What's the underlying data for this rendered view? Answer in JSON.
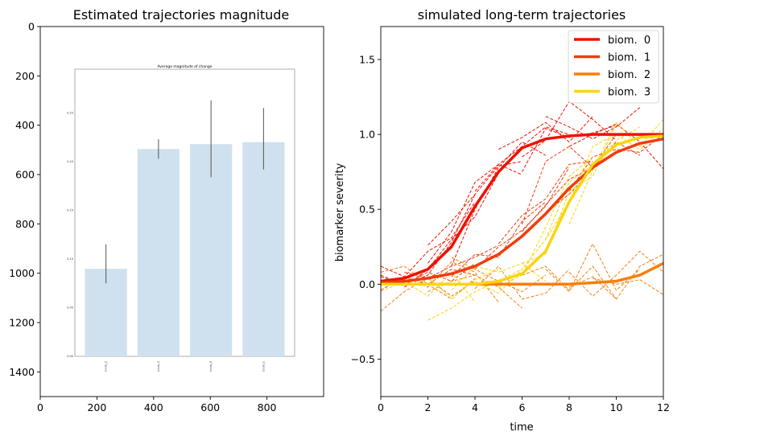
{
  "chart_data": [
    {
      "type": "image-axes",
      "title": "Estimated trajectories magnitude",
      "xlim": [
        0,
        1000
      ],
      "ylim": [
        1500,
        0
      ],
      "x_ticks": [
        0,
        200,
        400,
        600,
        800
      ],
      "y_ticks": [
        0,
        200,
        400,
        600,
        800,
        1000,
        1200,
        1400
      ],
      "inset": {
        "type": "bar",
        "title": "Average magnitude of change",
        "categories": [
          "biom_2",
          "biom_3",
          "biom_0",
          "biom_1"
        ],
        "values": [
          0.09,
          0.213,
          0.218,
          0.22
        ],
        "error": [
          [
            0.075,
            0.115
          ],
          [
            0.203,
            0.223
          ],
          [
            0.184,
            0.263
          ],
          [
            0.192,
            0.255
          ]
        ],
        "ylim": [
          0,
          0.295
        ],
        "y_ticks": [
          "0.00",
          "0.05",
          "0.10",
          "0.15",
          "0.20",
          "0.25"
        ],
        "bar_color": "#cfe1ee"
      }
    },
    {
      "type": "line",
      "title": "simulated long-term trajectories",
      "xlabel": "time",
      "ylabel": "biomarker severity",
      "xlim": [
        0,
        12
      ],
      "ylim": [
        -0.75,
        1.72
      ],
      "x_ticks": [
        0,
        2,
        4,
        6,
        8,
        10,
        12
      ],
      "y_ticks": [
        -0.5,
        0.0,
        0.5,
        1.0,
        1.5
      ],
      "legend_position": "top-right",
      "series": [
        {
          "name": "biom.  0",
          "color": "#ee1100",
          "x": [
            0,
            1,
            2,
            3,
            4,
            5,
            6,
            7,
            8,
            9,
            10,
            11,
            12
          ],
          "y": [
            0.02,
            0.04,
            0.1,
            0.25,
            0.52,
            0.75,
            0.91,
            0.97,
            0.99,
            1.0,
            1.0,
            1.0,
            1.0
          ]
        },
        {
          "name": "biom.  1",
          "color": "#f03c0e",
          "x": [
            0,
            1,
            2,
            3,
            4,
            5,
            6,
            7,
            8,
            9,
            10,
            11,
            12
          ],
          "y": [
            0.01,
            0.02,
            0.04,
            0.07,
            0.12,
            0.2,
            0.32,
            0.47,
            0.64,
            0.78,
            0.88,
            0.94,
            0.97
          ]
        },
        {
          "name": "biom.  2",
          "color": "#f77f0c",
          "x": [
            0,
            1,
            2,
            3,
            4,
            5,
            6,
            7,
            8,
            9,
            10,
            11,
            12
          ],
          "y": [
            0.0,
            0.0,
            0.0,
            0.0,
            0.0,
            0.0,
            0.0,
            0.0,
            0.0,
            0.01,
            0.02,
            0.06,
            0.14
          ]
        },
        {
          "name": "biom.  3",
          "color": "#fad50f",
          "x": [
            0,
            1,
            2,
            3,
            4,
            5,
            6,
            7,
            8,
            9,
            10,
            11,
            12
          ],
          "y": [
            0.0,
            0.0,
            0.0,
            0.0,
            0.0,
            0.02,
            0.07,
            0.22,
            0.55,
            0.8,
            0.93,
            0.98,
            0.99
          ]
        }
      ],
      "samples": [
        {
          "series": 0,
          "x": [
            0,
            1,
            2,
            3,
            4
          ],
          "y": [
            0.12,
            0.05,
            0.22,
            0.31,
            0.55
          ]
        },
        {
          "series": 0,
          "x": [
            1,
            2,
            3,
            4,
            5
          ],
          "y": [
            -0.02,
            0.1,
            0.3,
            0.45,
            0.74
          ]
        },
        {
          "series": 0,
          "x": [
            2,
            3,
            4,
            5,
            6
          ],
          "y": [
            0.26,
            0.42,
            0.6,
            0.79,
            0.82
          ]
        },
        {
          "series": 0,
          "x": [
            3,
            4,
            5,
            6,
            7
          ],
          "y": [
            0.12,
            0.5,
            0.78,
            0.95,
            0.86
          ]
        },
        {
          "series": 0,
          "x": [
            4,
            5,
            6,
            7,
            8
          ],
          "y": [
            0.62,
            0.8,
            0.92,
            1.05,
            1.0
          ]
        },
        {
          "series": 0,
          "x": [
            0,
            1,
            2,
            3,
            4
          ],
          "y": [
            0.05,
            0.0,
            0.06,
            0.28,
            0.6
          ]
        },
        {
          "series": 0,
          "x": [
            5,
            6,
            7,
            8,
            9
          ],
          "y": [
            0.9,
            0.98,
            1.08,
            0.95,
            1.12
          ]
        },
        {
          "series": 0,
          "x": [
            6,
            7,
            8,
            9,
            10
          ],
          "y": [
            0.85,
            0.96,
            1.22,
            1.1,
            0.96
          ]
        },
        {
          "series": 0,
          "x": [
            7,
            8,
            9,
            10,
            11
          ],
          "y": [
            1.12,
            1.05,
            0.97,
            1.05,
            1.18
          ]
        },
        {
          "series": 0,
          "x": [
            8,
            9,
            10,
            11,
            12
          ],
          "y": [
            0.92,
            1.0,
            1.07,
            0.95,
            0.77
          ]
        },
        {
          "series": 0,
          "x": [
            2,
            3,
            4,
            5,
            6
          ],
          "y": [
            0.14,
            0.35,
            0.68,
            0.8,
            0.73
          ]
        },
        {
          "series": 0,
          "x": [
            6,
            7,
            8,
            9,
            10
          ],
          "y": [
            0.75,
            1.04,
            0.98,
            1.01,
            1.06
          ]
        },
        {
          "series": 1,
          "x": [
            0,
            1,
            2,
            3,
            4
          ],
          "y": [
            0.06,
            0.0,
            0.08,
            0.02,
            0.14
          ]
        },
        {
          "series": 1,
          "x": [
            1,
            2,
            3,
            4,
            5
          ],
          "y": [
            0.08,
            0.04,
            0.12,
            0.18,
            0.26
          ]
        },
        {
          "series": 1,
          "x": [
            3,
            4,
            5,
            6,
            7
          ],
          "y": [
            0.05,
            0.2,
            0.18,
            0.42,
            0.55
          ]
        },
        {
          "series": 1,
          "x": [
            5,
            6,
            7,
            8,
            9
          ],
          "y": [
            0.27,
            0.46,
            0.57,
            0.8,
            0.82
          ]
        },
        {
          "series": 1,
          "x": [
            6,
            7,
            8,
            9,
            10
          ],
          "y": [
            0.35,
            0.53,
            0.7,
            0.78,
            0.94
          ]
        },
        {
          "series": 1,
          "x": [
            7,
            8,
            9,
            10,
            11
          ],
          "y": [
            0.48,
            0.6,
            0.77,
            0.95,
            0.86
          ]
        },
        {
          "series": 1,
          "x": [
            8,
            9,
            10,
            11,
            12
          ],
          "y": [
            0.62,
            0.85,
            0.9,
            0.88,
            1.0
          ]
        },
        {
          "series": 1,
          "x": [
            0,
            1,
            2,
            3,
            4
          ],
          "y": [
            -0.04,
            0.05,
            0.0,
            0.1,
            0.06
          ]
        },
        {
          "series": 1,
          "x": [
            4,
            5,
            6,
            7,
            8
          ],
          "y": [
            0.1,
            0.25,
            0.36,
            0.52,
            0.78
          ]
        },
        {
          "series": 1,
          "x": [
            6,
            7,
            8,
            9,
            10
          ],
          "y": [
            0.4,
            0.82,
            0.92,
            0.78,
            1.0
          ]
        },
        {
          "series": 2,
          "x": [
            0,
            1,
            2,
            3,
            4
          ],
          "y": [
            -0.18,
            -0.05,
            0.04,
            -0.08,
            0.02
          ]
        },
        {
          "series": 2,
          "x": [
            1,
            2,
            3,
            4,
            5
          ],
          "y": [
            0.05,
            -0.02,
            0.15,
            0.08,
            -0.12
          ]
        },
        {
          "series": 2,
          "x": [
            3,
            4,
            5,
            6,
            7
          ],
          "y": [
            0.18,
            0.1,
            0.02,
            -0.05,
            0.06
          ]
        },
        {
          "series": 2,
          "x": [
            4,
            5,
            6,
            7,
            8
          ],
          "y": [
            -0.03,
            0.12,
            -0.1,
            -0.06,
            0.1
          ]
        },
        {
          "series": 2,
          "x": [
            6,
            7,
            8,
            9,
            10
          ],
          "y": [
            0.06,
            0.12,
            -0.04,
            0.12,
            -0.1
          ]
        },
        {
          "series": 2,
          "x": [
            7,
            8,
            9,
            10,
            11
          ],
          "y": [
            0.1,
            -0.05,
            0.27,
            -0.04,
            0.1
          ]
        },
        {
          "series": 2,
          "x": [
            8,
            9,
            10,
            11,
            12
          ],
          "y": [
            0.08,
            -0.08,
            0.06,
            0.22,
            0.08
          ]
        },
        {
          "series": 2,
          "x": [
            8,
            9,
            10,
            11,
            12
          ],
          "y": [
            -0.02,
            0.05,
            -0.1,
            0.12,
            0.2
          ]
        },
        {
          "series": 2,
          "x": [
            0,
            1,
            2,
            3,
            4
          ],
          "y": [
            0.08,
            0.12,
            0.0,
            -0.1,
            0.04
          ]
        },
        {
          "series": 2,
          "x": [
            9,
            10,
            11,
            12
          ],
          "y": [
            0.04,
            0.0,
            0.03,
            -0.07
          ]
        },
        {
          "series": 2,
          "x": [
            2,
            3,
            4,
            5,
            6
          ],
          "y": [
            -0.05,
            0.02,
            0.06,
            -0.02,
            -0.16
          ]
        },
        {
          "series": 3,
          "x": [
            0,
            1,
            2,
            3,
            4
          ],
          "y": [
            -0.05,
            0.02,
            -0.08,
            0.08,
            -0.12
          ]
        },
        {
          "series": 3,
          "x": [
            2,
            3,
            4,
            5,
            6
          ],
          "y": [
            -0.24,
            -0.16,
            -0.05,
            0.02,
            0.1
          ]
        },
        {
          "series": 3,
          "x": [
            3,
            4,
            5,
            6,
            7
          ],
          "y": [
            -0.04,
            0.12,
            0.08,
            0.14,
            0.02
          ]
        },
        {
          "series": 3,
          "x": [
            5,
            6,
            7,
            8,
            9
          ],
          "y": [
            -0.02,
            0.06,
            0.38,
            0.72,
            0.85
          ]
        },
        {
          "series": 3,
          "x": [
            6,
            7,
            8,
            9,
            10
          ],
          "y": [
            0.14,
            0.2,
            0.62,
            0.72,
            1.07
          ]
        },
        {
          "series": 3,
          "x": [
            7,
            8,
            9,
            10,
            11
          ],
          "y": [
            0.3,
            0.68,
            0.8,
            0.96,
            1.05
          ]
        },
        {
          "series": 3,
          "x": [
            8,
            9,
            10,
            11,
            12
          ],
          "y": [
            0.4,
            0.76,
            1.08,
            0.92,
            1.1
          ]
        },
        {
          "series": 3,
          "x": [
            1,
            2,
            3,
            4,
            5
          ],
          "y": [
            0.0,
            0.05,
            -0.1,
            0.03,
            0.1
          ]
        },
        {
          "series": 3,
          "x": [
            4,
            5,
            6,
            7,
            8
          ],
          "y": [
            0.02,
            -0.06,
            0.1,
            0.3,
            0.55
          ]
        },
        {
          "series": 3,
          "x": [
            8,
            9,
            10,
            11,
            12
          ],
          "y": [
            0.55,
            0.92,
            1.0,
            0.9,
            1.04
          ]
        }
      ]
    }
  ]
}
